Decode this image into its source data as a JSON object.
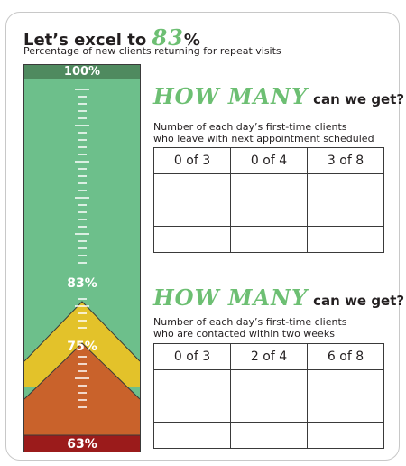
{
  "header": {
    "title_prefix": "Let’s excel to ",
    "title_number": "83",
    "title_suffix": "%",
    "subtitle": "Percentage of new clients returning for repeat visits"
  },
  "gauge": {
    "labels": {
      "top": "100%",
      "mid": "83%",
      "lower": "75%",
      "bottom": "63%"
    },
    "colors": {
      "green": "#6dbf8b",
      "dark_green": "#4f8a5f",
      "yellow": "#e3c22a",
      "orange": "#c9622b",
      "red": "#9b1b1b"
    }
  },
  "sections": [
    {
      "how": "HOW MANY",
      "rest": "can we get?",
      "desc_line1": "Number of each day’s first-time clients",
      "desc_line2": "who leave with next appointment scheduled",
      "cells": [
        "0 of 3",
        "0 of 4",
        "3 of 8"
      ]
    },
    {
      "how": "HOW MANY",
      "rest": "can we get?",
      "desc_line1": "Number of each day’s first-time clients",
      "desc_line2": "who are contacted within two weeks",
      "cells": [
        "0 of 3",
        "2 of 4",
        "6 of 8"
      ]
    }
  ]
}
